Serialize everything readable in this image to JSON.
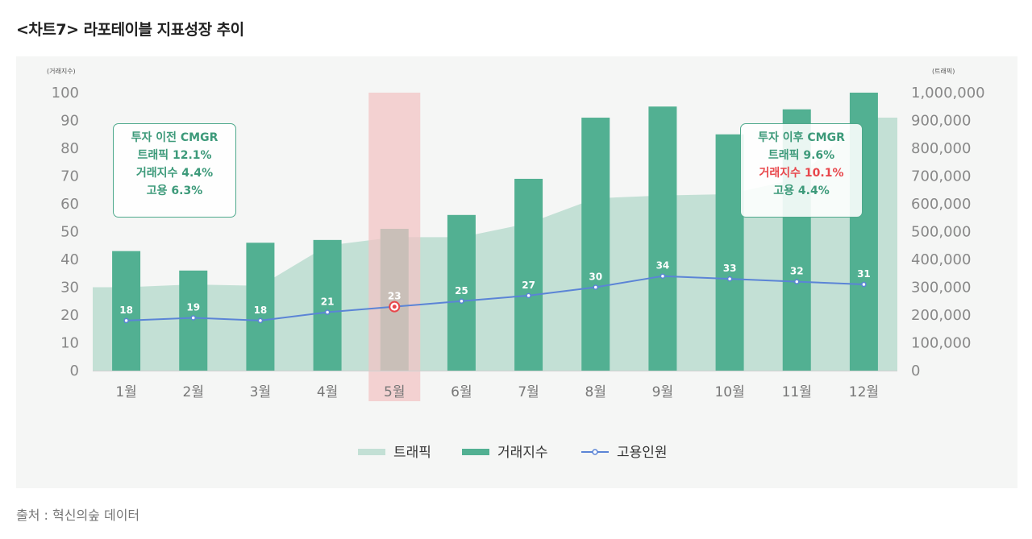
{
  "title": "<차트7>  라포테이블 지표성장 추이",
  "source": "출처 : 혁신의숲 데이터",
  "chart_data": {
    "type": "bar",
    "categories": [
      "1월",
      "2월",
      "3월",
      "4월",
      "5월",
      "6월",
      "7월",
      "8월",
      "9월",
      "10월",
      "11월",
      "12월"
    ],
    "left_axis_label": "(거래지수)",
    "right_axis_label": "(트래픽)",
    "left_ylim": [
      0,
      100
    ],
    "right_ylim": [
      0,
      1000000
    ],
    "left_ticks": [
      "0",
      "10",
      "20",
      "30",
      "40",
      "50",
      "60",
      "70",
      "80",
      "90",
      "100"
    ],
    "right_ticks": [
      "0",
      "100,000",
      "200,000",
      "300,000",
      "400,000",
      "500,000",
      "600,000",
      "700,000",
      "800,000",
      "900,000",
      "1,000,000"
    ],
    "highlight_category": "5월",
    "series": [
      {
        "name": "트래픽",
        "type": "area",
        "axis": "right",
        "values": [
          300000,
          310000,
          305000,
          450000,
          480000,
          480000,
          530000,
          620000,
          630000,
          635000,
          690000,
          910000
        ]
      },
      {
        "name": "거래지수",
        "type": "bar",
        "axis": "left",
        "values": [
          43,
          36,
          46,
          47,
          51,
          56,
          69,
          91,
          95,
          85,
          94,
          100
        ]
      },
      {
        "name": "고용인원",
        "type": "line",
        "axis": "left",
        "values": [
          18,
          19,
          18,
          21,
          23,
          25,
          27,
          30,
          34,
          33,
          32,
          31
        ],
        "labels": [
          "18",
          "19",
          "18",
          "21",
          "23",
          "25",
          "27",
          "30",
          "34",
          "33",
          "32",
          "31"
        ]
      }
    ],
    "annotations": [
      {
        "heading": "투자 이전 CMGR",
        "lines": [
          "트래픽 12.1%",
          "거래지수 4.4%",
          "고용 6.3%"
        ],
        "highlight_index": -1
      },
      {
        "heading": "투자 이후 CMGR",
        "lines": [
          "트래픽 9.6%",
          "거래지수 10.1%",
          "고용 4.4%"
        ],
        "highlight_index": 1
      }
    ],
    "legend": [
      "트래픽",
      "거래지수",
      "고용인원"
    ]
  },
  "colors": {
    "traffic": "#c3e0d5",
    "bar": "#52b092",
    "line": "#5b84d6",
    "highlight": "#f2c4c4",
    "marker_red": "#e8474c"
  }
}
